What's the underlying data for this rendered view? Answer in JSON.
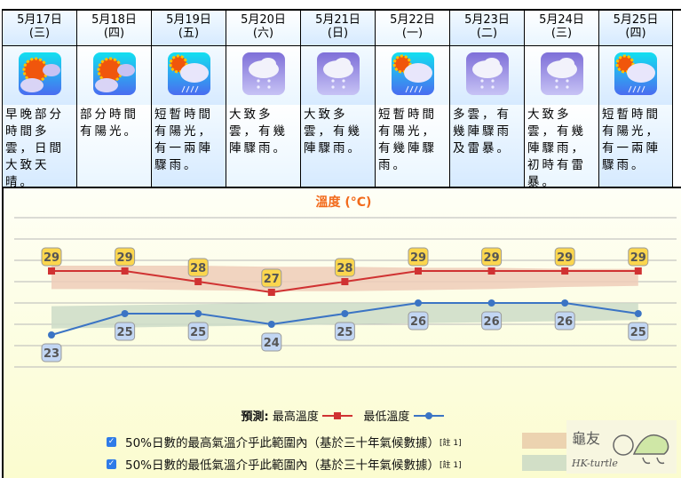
{
  "forecast": {
    "days": [
      {
        "date": "5月17日",
        "weekday": "(三)",
        "icon": "sunny-periods-icon",
        "description": "早晚部分時間多雲，日間大致天晴。"
      },
      {
        "date": "5月18日",
        "weekday": "(四)",
        "icon": "sunny-periods-icon",
        "description": "部分時間有陽光。"
      },
      {
        "date": "5月19日",
        "weekday": "(五)",
        "icon": "sunny-periods-showers-icon",
        "description": "短暫時間有陽光，有一兩陣驟雨。"
      },
      {
        "date": "5月20日",
        "weekday": "(六)",
        "icon": "cloudy-showers-icon",
        "description": "大致多雲，有幾陣驟雨。"
      },
      {
        "date": "5月21日",
        "weekday": "(日)",
        "icon": "cloudy-showers-icon",
        "description": "大致多雲，有幾陣驟雨。"
      },
      {
        "date": "5月22日",
        "weekday": "(一)",
        "icon": "sunny-periods-showers-icon",
        "description": "短暫時間有陽光，有幾陣驟雨。"
      },
      {
        "date": "5月23日",
        "weekday": "(二)",
        "icon": "cloudy-showers-icon",
        "description": "多雲，有幾陣驟雨及雷暴。"
      },
      {
        "date": "5月24日",
        "weekday": "(三)",
        "icon": "cloudy-showers-icon",
        "description": "大致多雲，有幾陣驟雨，初時有雷暴。"
      },
      {
        "date": "5月25日",
        "weekday": "(四)",
        "icon": "sunny-periods-showers-icon",
        "description": "短暫時間有陽光，有一兩陣驟雨。"
      }
    ]
  },
  "chart": {
    "title": "溫度 (°C)",
    "legend_prefix": "預測:",
    "legend_max": "最高溫度",
    "legend_min": "最低溫度",
    "colors": {
      "max": "#d03232",
      "min": "#3b74c4",
      "max_band": "#efcdb8",
      "min_band": "#cddcc8",
      "title": "#f26a1b"
    }
  },
  "toggles": [
    {
      "label": "50%日數的最高氣溫介乎此範圍內（基於三十年氣候數據）",
      "note": "[註 1]",
      "checked": true
    },
    {
      "label": "50%日數的最低氣溫介乎此範圍內（基於三十年氣候數據）",
      "note": "[註 1]",
      "checked": true
    }
  ],
  "chart_data": {
    "type": "line",
    "title": "溫度 (°C)",
    "categories": [
      "5月17日",
      "5月18日",
      "5月19日",
      "5月20日",
      "5月21日",
      "5月22日",
      "5月23日",
      "5月24日",
      "5月25日"
    ],
    "series": [
      {
        "name": "最高溫度",
        "values": [
          29,
          29,
          28,
          27,
          28,
          29,
          29,
          29,
          29
        ]
      },
      {
        "name": "最低溫度",
        "values": [
          23,
          25,
          25,
          24,
          25,
          26,
          26,
          26,
          25
        ]
      }
    ],
    "bands": [
      {
        "name": "50%日數的最高氣溫範圍",
        "upper": [
          29.5,
          29.5,
          29.5,
          29.4,
          29.4,
          29.3,
          29.3,
          29.2,
          29.2
        ],
        "lower": [
          27.3,
          27.3,
          27.2,
          27.1,
          27.1,
          27.2,
          27.3,
          27.5,
          27.6
        ]
      },
      {
        "name": "50%日數的最低氣溫範圍",
        "upper": [
          25.7,
          25.8,
          25.9,
          26.0,
          26.0,
          26.0,
          26.0,
          26.0,
          26.0
        ],
        "lower": [
          23.6,
          23.7,
          23.8,
          23.9,
          24.0,
          24.1,
          24.2,
          24.3,
          24.4
        ]
      }
    ],
    "ylim": [
      21,
      31
    ],
    "grid": true,
    "legend_position": "bottom"
  }
}
